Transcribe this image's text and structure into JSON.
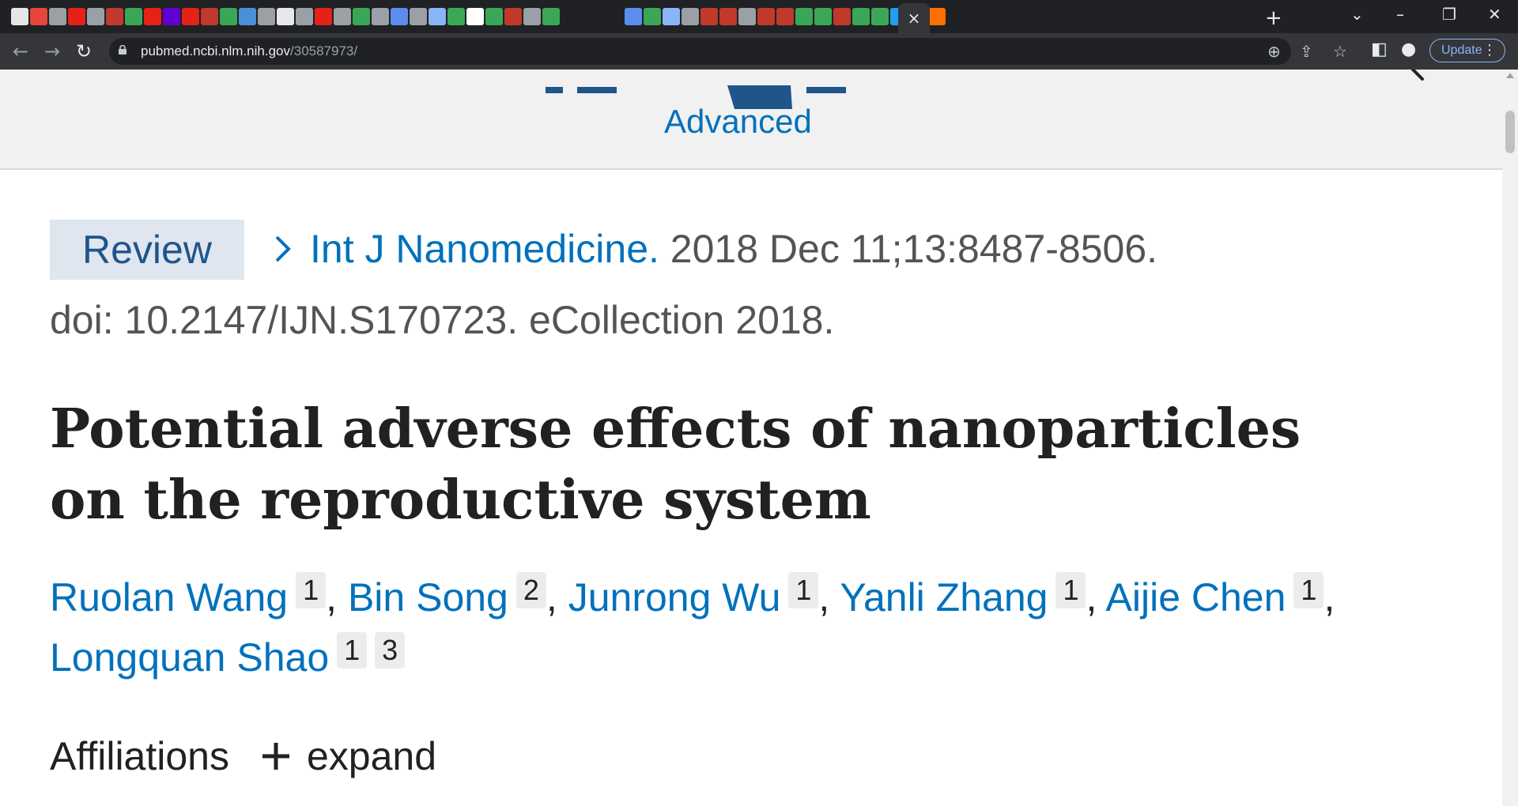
{
  "browser": {
    "active_tab_close": "×",
    "new_tab": "+",
    "url_host": "pubmed.ncbi.nlm.nih.gov",
    "url_path": "/30587973/",
    "update_label": "Update",
    "tab_icon_colors": [
      "#e6e6e6",
      "#e8453c",
      "#9aa0a6",
      "#e62117",
      "#9aa0a6",
      "#c0392b",
      "#3aa757",
      "#e62117",
      "#6001d2",
      "#e62117",
      "#c0392b",
      "#3aa757",
      "#4a90d9",
      "#9aa0a6",
      "#e8e8e8",
      "#9aa0a6",
      "#e62117",
      "#9aa0a6",
      "#3aa757",
      "#9aa0a6",
      "#5b8def",
      "#9aa0a6",
      "#8ab4f8",
      "#3aa757",
      "#ffffff",
      "#3aa757",
      "#c0392b",
      "#9aa0a6",
      "#3aa757",
      "#5b8def",
      "#3aa757",
      "#8ab4f8",
      "#9aa0a6",
      "#c0392b",
      "#c0392b",
      "#9aa0a6",
      "#c0392b",
      "#c0392b",
      "#3aa757",
      "#3aa757",
      "#c0392b",
      "#3aa757",
      "#3aa757",
      "#1da1f2",
      "#8ab4f8",
      "#ff6f00"
    ]
  },
  "header": {
    "advanced_link": "Advanced",
    "brand_color": "#20558a",
    "link_color": "#0071bc"
  },
  "article": {
    "type_badge": "Review",
    "journal": "Int J Nanomedicine.",
    "citation": " 2018 Dec 11;13:8487-8506.",
    "doi": "doi: 10.2147/IJN.S170723. eCollection 2018.",
    "title": "Potential adverse effects of nanoparticles on the reproductive system",
    "authors": [
      {
        "name": "Ruolan Wang",
        "affs": [
          "1"
        ]
      },
      {
        "name": "Bin Song",
        "affs": [
          "2"
        ]
      },
      {
        "name": "Junrong Wu",
        "affs": [
          "1"
        ]
      },
      {
        "name": "Yanli Zhang",
        "affs": [
          "1"
        ]
      },
      {
        "name": "Aijie Chen",
        "affs": [
          "1"
        ]
      },
      {
        "name": "Longquan Shao",
        "affs": [
          "1",
          "3"
        ]
      }
    ],
    "affiliations_label": "Affiliations",
    "expand_label": "expand"
  }
}
